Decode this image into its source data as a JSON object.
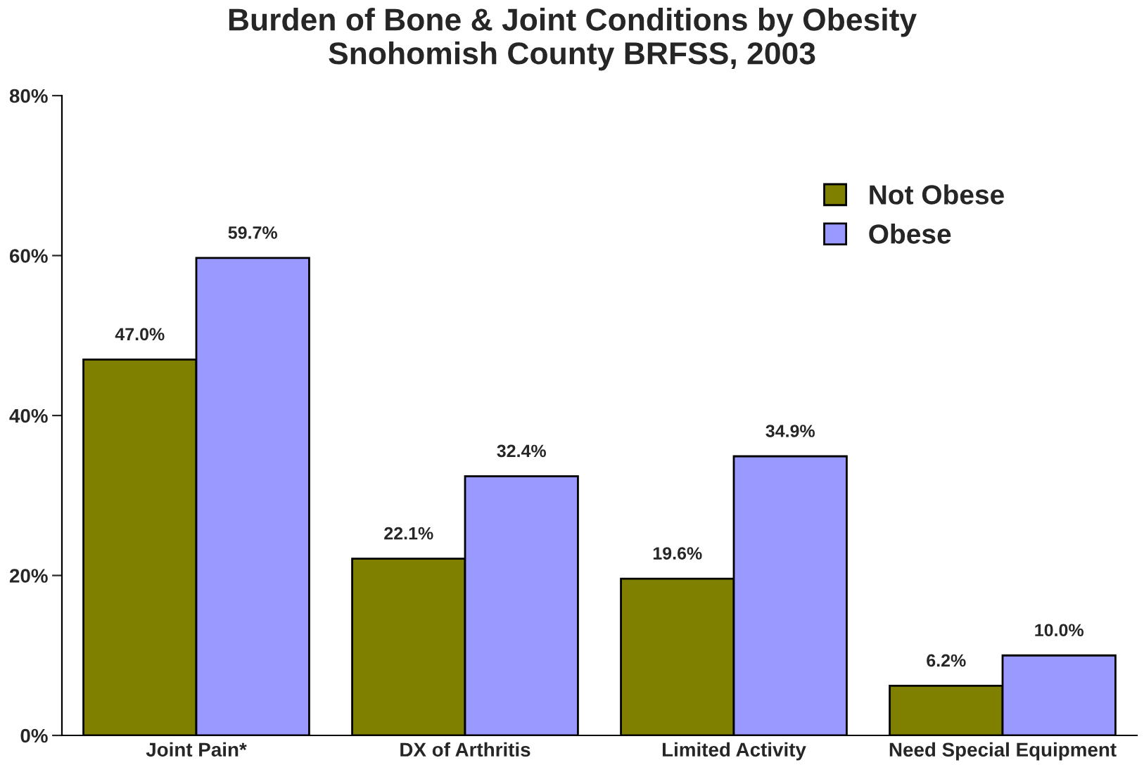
{
  "chart_data": {
    "type": "bar",
    "title": "Burden of Bone & Joint Conditions by Obesity\nSnohomish County BRFSS, 2003",
    "categories": [
      "Joint Pain*",
      "DX of Arthritis",
      "Limited Activity",
      "Need Special Equipment"
    ],
    "series": [
      {
        "name": "Not Obese",
        "color": "#808000",
        "values": [
          47.0,
          22.1,
          19.6,
          6.2
        ],
        "value_labels": [
          "47.0%",
          "22.1%",
          "19.6%",
          "6.2%"
        ]
      },
      {
        "name": "Obese",
        "color": "#9999ff",
        "values": [
          59.7,
          32.4,
          34.9,
          10.0
        ],
        "value_labels": [
          "59.7%",
          "32.4%",
          "34.9%",
          "10.0%"
        ]
      }
    ],
    "ylim": [
      0,
      80
    ],
    "yticks": [
      {
        "value": 0,
        "label": "0%"
      },
      {
        "value": 20,
        "label": "20%"
      },
      {
        "value": 40,
        "label": "40%"
      },
      {
        "value": 60,
        "label": "60%"
      },
      {
        "value": 80,
        "label": "80%"
      }
    ],
    "grid": false,
    "legend": "top right"
  }
}
